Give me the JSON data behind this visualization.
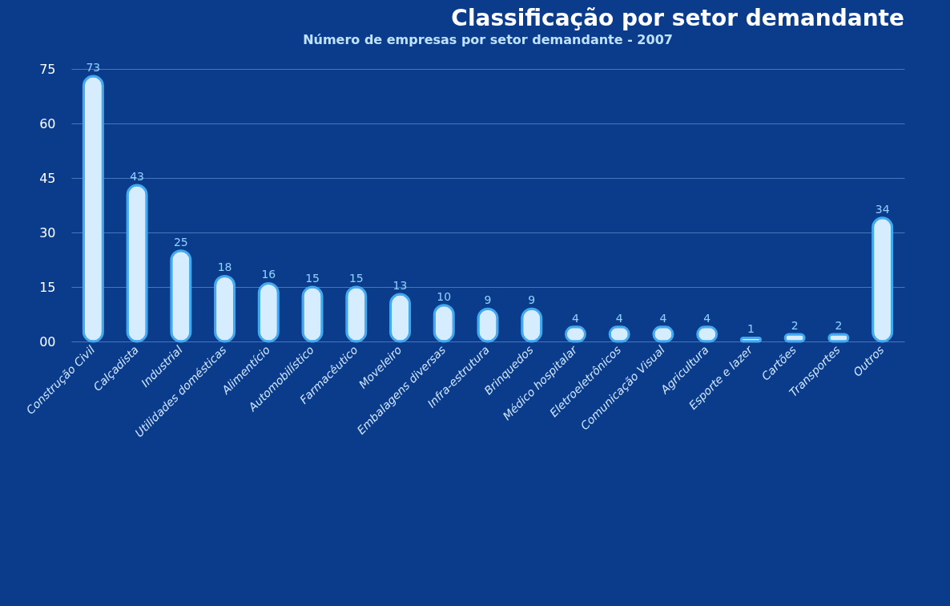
{
  "chart_data": {
    "type": "bar",
    "title": "Classificação por setor demandante",
    "subtitle": "Número de empresas por setor demandante - 2007",
    "categories": [
      "Construção Civil",
      "Calçadista",
      "Industrial",
      "Utilidades domésticas",
      "Alimentício",
      "Automobilístico",
      "Farmacêutico",
      "Moveleiro",
      "Embalagens diversas",
      "Infra-estrutura",
      "Brinquedos",
      "Médico  hospitalar",
      "Eletroeletrônicos",
      "Comunicação Visual",
      "Agricultura",
      "Esporte e lazer",
      "Cartões",
      "Transportes",
      "Outros"
    ],
    "values": [
      73,
      43,
      25,
      18,
      16,
      15,
      15,
      13,
      10,
      9,
      9,
      4,
      4,
      4,
      4,
      1,
      2,
      2,
      34
    ],
    "color": "#d6ecff",
    "ylim": [
      0,
      75
    ],
    "yticks": [
      {
        "value": 0,
        "label": "00"
      },
      15,
      30,
      45,
      60,
      75
    ],
    "grid": "y",
    "data_labels": true
  }
}
